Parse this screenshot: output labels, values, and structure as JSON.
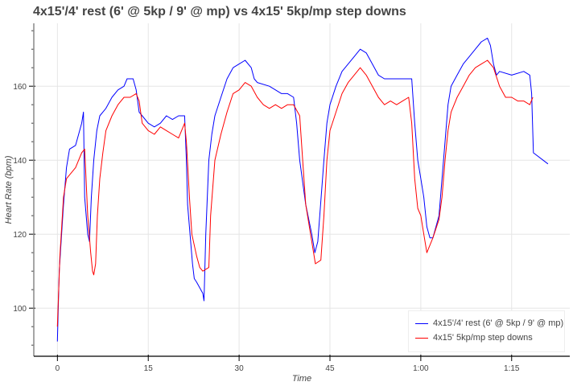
{
  "chart_data": {
    "type": "line",
    "title": "4x15'/4' rest (6' @ 5kp / 9' @ mp) vs 4x15' 5kp/mp step downs",
    "xlabel": "Time",
    "ylabel": "Heart Rate (bpm)",
    "xlim": [
      -3.9,
      84.6
    ],
    "ylim": [
      87,
      177
    ],
    "x_ticks": [
      {
        "v": 0,
        "label": "0"
      },
      {
        "v": 15,
        "label": "15"
      },
      {
        "v": 30,
        "label": "30"
      },
      {
        "v": 45,
        "label": "45"
      },
      {
        "v": 60,
        "label": "1:00"
      },
      {
        "v": 75,
        "label": "1:15"
      }
    ],
    "y_ticks": [
      {
        "v": 100,
        "label": "100"
      },
      {
        "v": 120,
        "label": "120"
      },
      {
        "v": 140,
        "label": "140"
      },
      {
        "v": 160,
        "label": "160"
      }
    ],
    "grid": true,
    "legend_position": "bottom-right",
    "series": [
      {
        "name": "4x15'/4' rest (6' @ 5kp / 9' @ mp)",
        "color": "#0000ff",
        "points": [
          [
            0,
            91
          ],
          [
            0.3,
            110
          ],
          [
            1,
            128
          ],
          [
            1.5,
            138
          ],
          [
            2,
            143
          ],
          [
            3,
            144
          ],
          [
            3.5,
            147
          ],
          [
            4,
            150
          ],
          [
            4.3,
            153
          ],
          [
            4.5,
            130
          ],
          [
            5,
            120
          ],
          [
            5.3,
            118
          ],
          [
            5.6,
            130
          ],
          [
            6,
            140
          ],
          [
            6.5,
            148
          ],
          [
            7,
            152
          ],
          [
            8,
            154
          ],
          [
            9,
            157
          ],
          [
            10,
            159
          ],
          [
            11,
            160
          ],
          [
            11.5,
            162
          ],
          [
            12.5,
            162
          ],
          [
            13,
            159
          ],
          [
            13.5,
            153
          ],
          [
            14,
            152
          ],
          [
            15,
            150
          ],
          [
            16,
            149
          ],
          [
            17,
            150
          ],
          [
            18,
            152
          ],
          [
            19,
            151
          ],
          [
            20,
            152
          ],
          [
            21,
            152
          ],
          [
            21.3,
            140
          ],
          [
            21.5,
            128
          ],
          [
            22,
            118
          ],
          [
            22.3,
            112
          ],
          [
            22.6,
            108
          ],
          [
            23,
            107
          ],
          [
            24,
            104
          ],
          [
            24.2,
            102
          ],
          [
            24.5,
            120
          ],
          [
            25,
            140
          ],
          [
            25.5,
            147
          ],
          [
            26,
            152
          ],
          [
            27,
            157
          ],
          [
            28,
            162
          ],
          [
            29,
            165
          ],
          [
            30,
            166
          ],
          [
            31,
            167
          ],
          [
            32,
            165
          ],
          [
            32.5,
            162
          ],
          [
            33,
            161
          ],
          [
            35,
            160
          ],
          [
            36,
            159
          ],
          [
            37,
            158
          ],
          [
            38,
            158
          ],
          [
            39,
            157
          ],
          [
            39.5,
            150
          ],
          [
            40,
            140
          ],
          [
            41,
            128
          ],
          [
            42,
            120
          ],
          [
            42.5,
            115
          ],
          [
            43,
            118
          ],
          [
            44,
            140
          ],
          [
            44.5,
            150
          ],
          [
            45,
            155
          ],
          [
            46,
            160
          ],
          [
            47,
            164
          ],
          [
            48,
            166
          ],
          [
            49,
            168
          ],
          [
            50,
            170
          ],
          [
            51,
            169
          ],
          [
            52,
            166
          ],
          [
            53,
            163
          ],
          [
            54,
            162
          ],
          [
            55,
            162
          ],
          [
            58.5,
            162
          ],
          [
            59,
            150
          ],
          [
            59.5,
            140
          ],
          [
            60,
            135
          ],
          [
            60.5,
            130
          ],
          [
            61,
            122
          ],
          [
            61.5,
            119
          ],
          [
            62,
            119
          ],
          [
            63,
            125
          ],
          [
            64,
            145
          ],
          [
            64.5,
            155
          ],
          [
            65,
            160
          ],
          [
            66,
            163
          ],
          [
            67,
            166
          ],
          [
            68,
            168
          ],
          [
            69,
            170
          ],
          [
            70,
            172
          ],
          [
            71,
            173
          ],
          [
            71.5,
            171
          ],
          [
            72,
            166
          ],
          [
            72.5,
            163
          ],
          [
            73,
            164
          ],
          [
            75,
            163
          ],
          [
            77,
            164
          ],
          [
            78,
            163
          ],
          [
            78.3,
            158
          ],
          [
            78.6,
            142
          ],
          [
            81,
            139
          ]
        ]
      },
      {
        "name": "4x15' 5kp/mp step downs",
        "color": "#ff0000",
        "points": [
          [
            0,
            95
          ],
          [
            0.4,
            114
          ],
          [
            1,
            130
          ],
          [
            1.5,
            135
          ],
          [
            2,
            136
          ],
          [
            3,
            138
          ],
          [
            3.5,
            140
          ],
          [
            4,
            142
          ],
          [
            4.5,
            143
          ],
          [
            4.7,
            136
          ],
          [
            5,
            125
          ],
          [
            5.5,
            115
          ],
          [
            5.8,
            110
          ],
          [
            6,
            109
          ],
          [
            6.3,
            112
          ],
          [
            6.6,
            125
          ],
          [
            7,
            135
          ],
          [
            7.5,
            142
          ],
          [
            8,
            148
          ],
          [
            9,
            152
          ],
          [
            10,
            155
          ],
          [
            11,
            157
          ],
          [
            12,
            157
          ],
          [
            13,
            158
          ],
          [
            13.5,
            156
          ],
          [
            14,
            150
          ],
          [
            15,
            148
          ],
          [
            16,
            147
          ],
          [
            17,
            149
          ],
          [
            18,
            148
          ],
          [
            19,
            147
          ],
          [
            20,
            146
          ],
          [
            21,
            150
          ],
          [
            21.3,
            145
          ],
          [
            21.8,
            130
          ],
          [
            22.2,
            120
          ],
          [
            23,
            114
          ],
          [
            23.5,
            111
          ],
          [
            24,
            110
          ],
          [
            25,
            111
          ],
          [
            25.3,
            125
          ],
          [
            26,
            140
          ],
          [
            27,
            147
          ],
          [
            28,
            153
          ],
          [
            29,
            158
          ],
          [
            30,
            159
          ],
          [
            31,
            161
          ],
          [
            32,
            160
          ],
          [
            33,
            157
          ],
          [
            34,
            155
          ],
          [
            35,
            154
          ],
          [
            36,
            155
          ],
          [
            37,
            154
          ],
          [
            38,
            155
          ],
          [
            39,
            155
          ],
          [
            40,
            152
          ],
          [
            40.5,
            140
          ],
          [
            41,
            128
          ],
          [
            42,
            118
          ],
          [
            42.6,
            112
          ],
          [
            43.5,
            113
          ],
          [
            44,
            125
          ],
          [
            44.5,
            140
          ],
          [
            45,
            148
          ],
          [
            46,
            153
          ],
          [
            47,
            158
          ],
          [
            48,
            161
          ],
          [
            49,
            163
          ],
          [
            50,
            165
          ],
          [
            51,
            163
          ],
          [
            52,
            160
          ],
          [
            53,
            157
          ],
          [
            54,
            155
          ],
          [
            55,
            156
          ],
          [
            56,
            155
          ],
          [
            57,
            156
          ],
          [
            58,
            157
          ],
          [
            58.5,
            150
          ],
          [
            59,
            135
          ],
          [
            59.5,
            127
          ],
          [
            60,
            125
          ],
          [
            60.5,
            120
          ],
          [
            61,
            115
          ],
          [
            62,
            119
          ],
          [
            63,
            124
          ],
          [
            63.5,
            130
          ],
          [
            64,
            140
          ],
          [
            64.5,
            148
          ],
          [
            65,
            153
          ],
          [
            66,
            157
          ],
          [
            67,
            160
          ],
          [
            68,
            163
          ],
          [
            69,
            165
          ],
          [
            70,
            166
          ],
          [
            71,
            167
          ],
          [
            72,
            165
          ],
          [
            73,
            160
          ],
          [
            74,
            157
          ],
          [
            75,
            157
          ],
          [
            76,
            156
          ],
          [
            77,
            156
          ],
          [
            78,
            155
          ],
          [
            78.5,
            157
          ]
        ]
      }
    ]
  }
}
